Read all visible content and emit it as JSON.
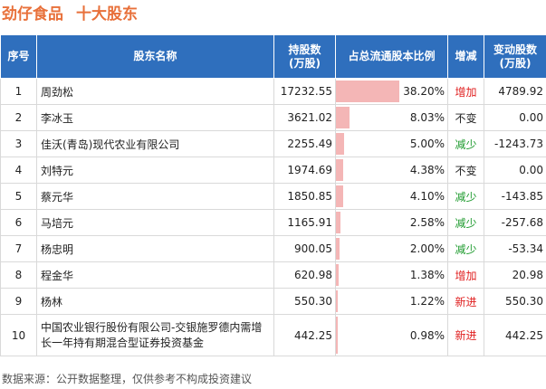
{
  "title": {
    "main": "劲仔食品",
    "sub": "十大股东"
  },
  "columns": {
    "index": "序号",
    "name": "股东名称",
    "shares_line1": "持股数",
    "shares_line2": "(万股)",
    "ratio": "占总流通股本比例",
    "change": "增减",
    "delta_line1": "变动股数",
    "delta_line2": "(万股)"
  },
  "rows": [
    {
      "index": "1",
      "name": "周劲松",
      "shares": "17232.55",
      "ratio": "38.20%",
      "ratio_value": 38.2,
      "change": "增加",
      "change_type": "inc",
      "delta": "4789.92"
    },
    {
      "index": "2",
      "name": "李冰玉",
      "shares": "3621.02",
      "ratio": "8.03%",
      "ratio_value": 8.03,
      "change": "不变",
      "change_type": "same",
      "delta": "0.00"
    },
    {
      "index": "3",
      "name": "佳沃(青岛)现代农业有限公司",
      "shares": "2255.49",
      "ratio": "5.00%",
      "ratio_value": 5.0,
      "change": "减少",
      "change_type": "dec",
      "delta": "-1243.73"
    },
    {
      "index": "4",
      "name": "刘特元",
      "shares": "1974.69",
      "ratio": "4.38%",
      "ratio_value": 4.38,
      "change": "不变",
      "change_type": "same",
      "delta": "0.00"
    },
    {
      "index": "5",
      "name": "蔡元华",
      "shares": "1850.85",
      "ratio": "4.10%",
      "ratio_value": 4.1,
      "change": "减少",
      "change_type": "dec",
      "delta": "-143.85"
    },
    {
      "index": "6",
      "name": "马培元",
      "shares": "1165.91",
      "ratio": "2.58%",
      "ratio_value": 2.58,
      "change": "减少",
      "change_type": "dec",
      "delta": "-257.68"
    },
    {
      "index": "7",
      "name": "杨忠明",
      "shares": "900.05",
      "ratio": "2.00%",
      "ratio_value": 2.0,
      "change": "减少",
      "change_type": "dec",
      "delta": "-53.34"
    },
    {
      "index": "8",
      "name": "程金华",
      "shares": "620.98",
      "ratio": "1.38%",
      "ratio_value": 1.38,
      "change": "增加",
      "change_type": "inc",
      "delta": "20.98"
    },
    {
      "index": "9",
      "name": "杨林",
      "shares": "550.30",
      "ratio": "1.22%",
      "ratio_value": 1.22,
      "change": "新进",
      "change_type": "new",
      "delta": "550.30"
    },
    {
      "index": "10",
      "name": "中国农业银行股份有限公司-交银施罗德内需增长一年持有期混合型证券投资基金",
      "shares": "442.25",
      "ratio": "0.98%",
      "ratio_value": 0.98,
      "change": "新进",
      "change_type": "new",
      "delta": "442.25"
    }
  ],
  "colors": {
    "header_bg": "#2f6fbd",
    "title": "#e8703a",
    "increase": "#e02020",
    "decrease": "#1c9a2c",
    "bar": "#f4b6b6"
  },
  "footer": "数据来源：公开数据整理，仅供参考不构成投资建议"
}
